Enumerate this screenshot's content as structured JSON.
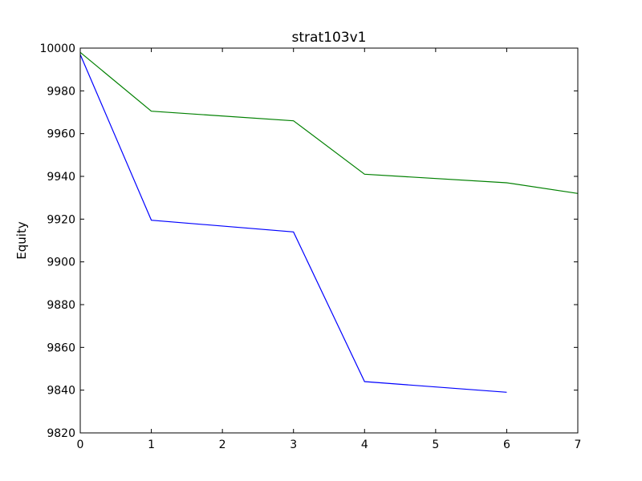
{
  "chart_data": {
    "type": "line",
    "title": "strat103v1",
    "xlabel": "",
    "ylabel": "Equity",
    "xlim": [
      0,
      7
    ],
    "ylim": [
      9820,
      10000
    ],
    "xticks": [
      0,
      1,
      2,
      3,
      4,
      5,
      6,
      7
    ],
    "yticks": [
      9820,
      9840,
      9860,
      9880,
      9900,
      9920,
      9940,
      9960,
      9980,
      10000
    ],
    "grid": false,
    "series": [
      {
        "color": "#0000ff",
        "x": [
          0,
          1,
          3,
          4,
          6
        ],
        "y": [
          9997,
          9919.5,
          9914,
          9844,
          9839
        ]
      },
      {
        "color": "#008000",
        "x": [
          0,
          1,
          3,
          4,
          6,
          7
        ],
        "y": [
          9998,
          9970.5,
          9966,
          9941,
          9937,
          9932
        ]
      }
    ]
  }
}
